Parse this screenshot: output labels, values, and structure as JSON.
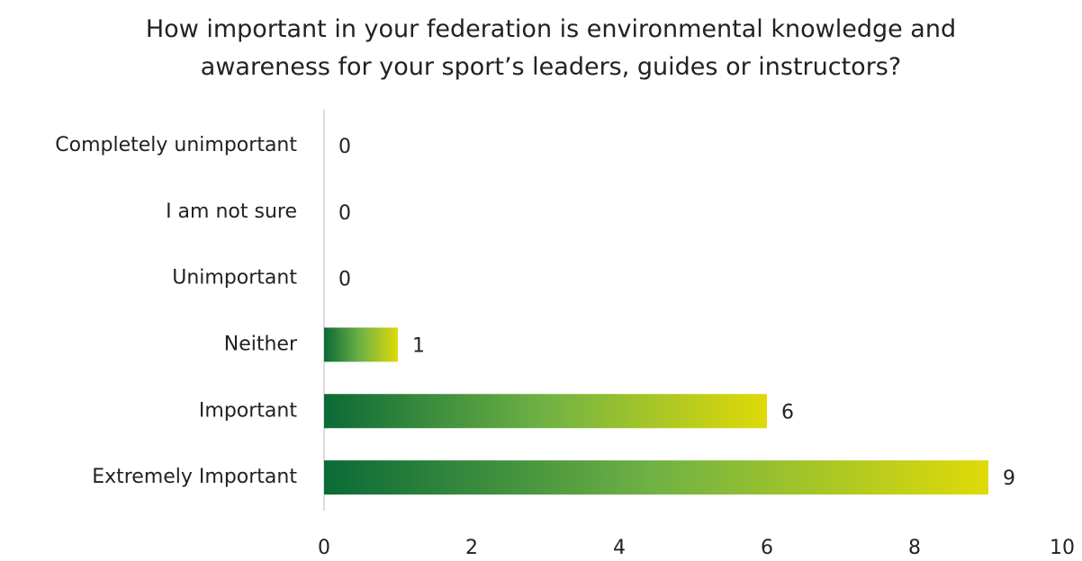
{
  "chart_data": {
    "type": "hbar",
    "title": "How important in your federation is environmental knowledge and awareness for your sport’s leaders, guides or instructors?",
    "categories": [
      "Completely unimportant",
      "I am not sure",
      "Unimportant",
      "Neither",
      "Important",
      "Extremely Important"
    ],
    "values": [
      0,
      0,
      0,
      1,
      6,
      9
    ],
    "gradient": [
      "#0b6a37",
      "#70b244",
      "#e0da08"
    ],
    "xlim": [
      0,
      10
    ],
    "xticks": [
      0,
      2,
      4,
      6,
      8,
      10
    ]
  }
}
